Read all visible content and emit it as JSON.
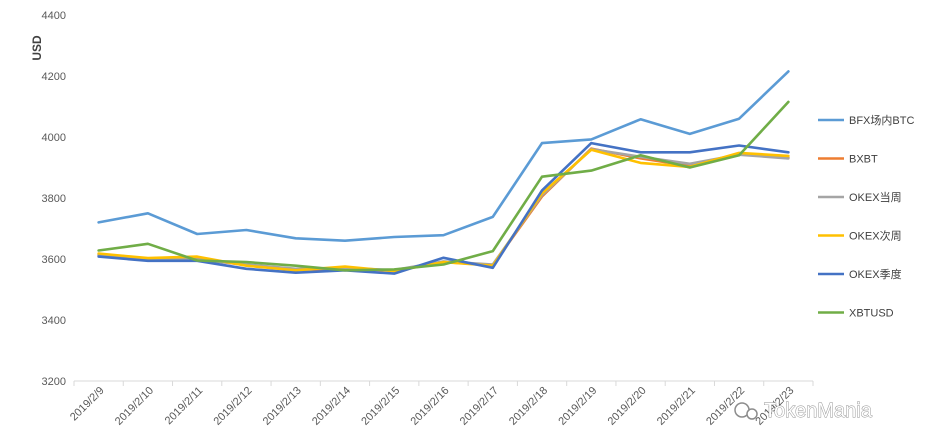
{
  "chart_data": {
    "type": "line",
    "ylabel": "USD",
    "xlabel": "",
    "title": "",
    "ylim": [
      3200,
      4400
    ],
    "yticks": [
      3200,
      3400,
      3600,
      3800,
      4000,
      4200,
      4400
    ],
    "grid": false,
    "legend_position": "right",
    "categories": [
      "2019/2/9",
      "2019/2/10",
      "2019/2/11",
      "2019/2/12",
      "2019/2/13",
      "2019/2/14",
      "2019/2/15",
      "2019/2/16",
      "2019/2/17",
      "2019/2/18",
      "2019/2/19",
      "2019/2/20",
      "2019/2/21",
      "2019/2/22",
      "2019/2/23"
    ],
    "series": [
      {
        "name": "BFX场内BTC",
        "color": "#5b9bd5",
        "values": [
          3720,
          3750,
          3682,
          3695,
          3668,
          3660,
          3672,
          3678,
          3738,
          3980,
          3992,
          4058,
          4010,
          4060,
          4215
        ]
      },
      {
        "name": "BXBT",
        "color": "#ed7d31",
        "values": [
          3612,
          3598,
          3600,
          3580,
          3565,
          3568,
          3562,
          3590,
          3580,
          3805,
          3962,
          3930,
          3905,
          3945,
          3932
        ]
      },
      {
        "name": "OKEX当周",
        "color": "#a5a5a5",
        "values": [
          3615,
          3600,
          3598,
          3582,
          3568,
          3570,
          3564,
          3592,
          3582,
          3810,
          3960,
          3935,
          3912,
          3942,
          3930
        ]
      },
      {
        "name": "OKEX次周",
        "color": "#ffc000",
        "values": [
          3618,
          3603,
          3608,
          3578,
          3563,
          3575,
          3560,
          3590,
          3578,
          3815,
          3958,
          3915,
          3902,
          3948,
          3938
        ]
      },
      {
        "name": "OKEX季度",
        "color": "#4472c4",
        "values": [
          3608,
          3594,
          3594,
          3568,
          3555,
          3563,
          3552,
          3604,
          3571,
          3825,
          3980,
          3950,
          3950,
          3972,
          3950
        ]
      },
      {
        "name": "XBTUSD",
        "color": "#70ad47",
        "values": [
          3628,
          3650,
          3595,
          3590,
          3578,
          3563,
          3566,
          3582,
          3626,
          3870,
          3890,
          3940,
          3900,
          3940,
          4115
        ]
      }
    ]
  },
  "watermark": {
    "text": "TokenMania"
  }
}
